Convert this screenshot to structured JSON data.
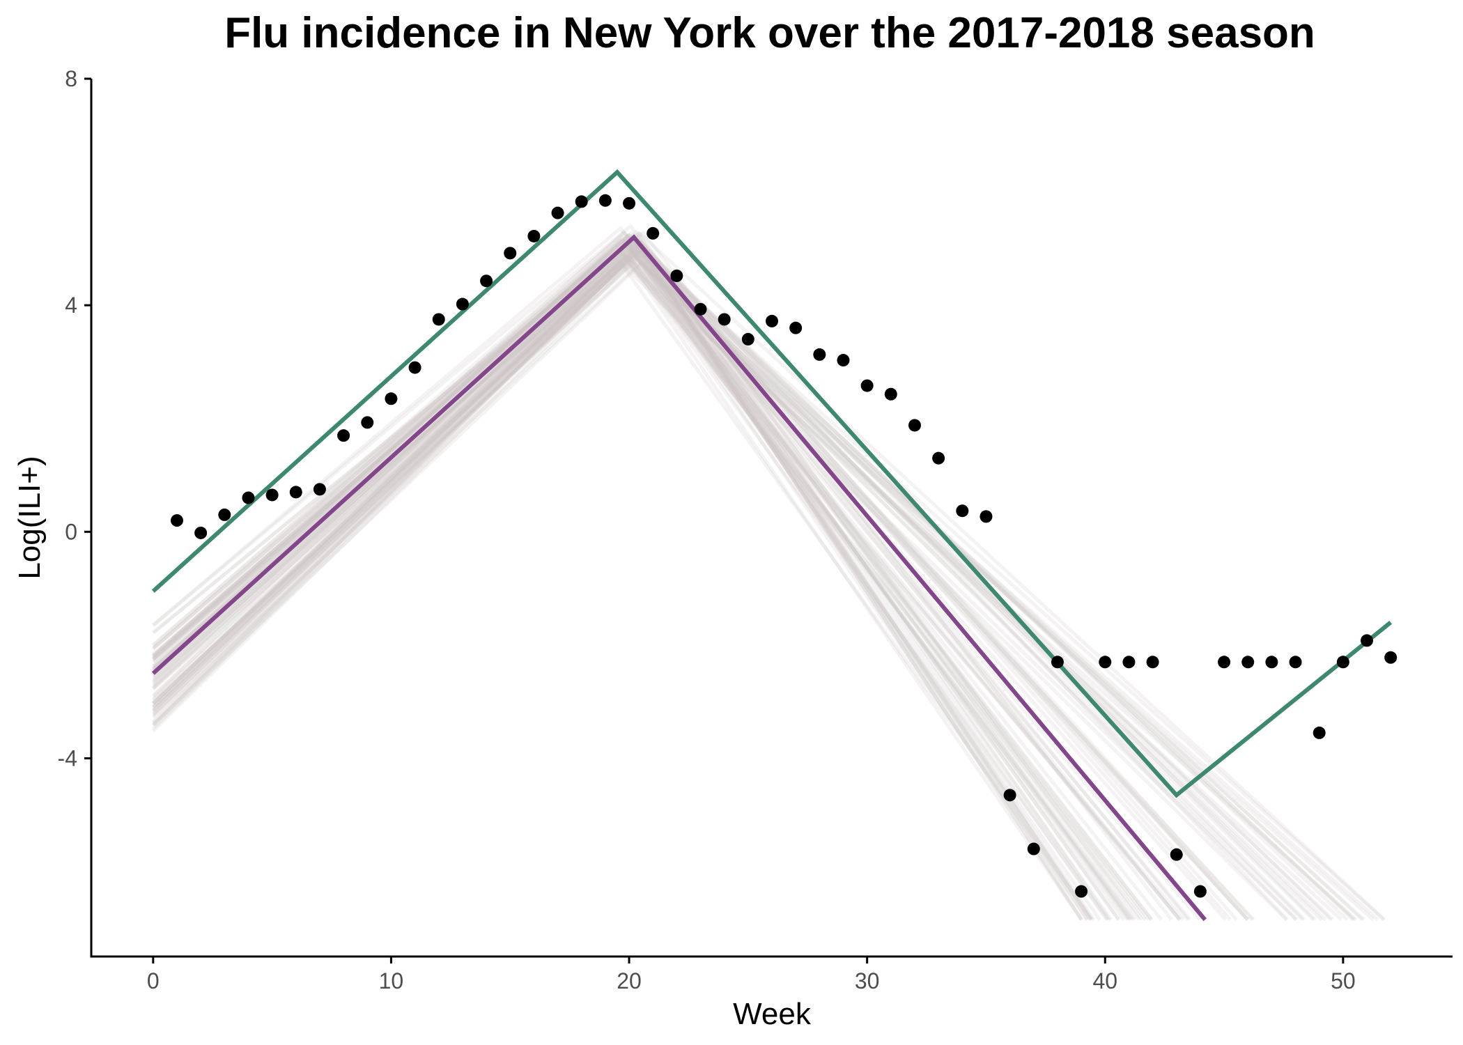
{
  "chart_data": {
    "type": "line",
    "title": "Flu incidence in New York over the 2017-2018 season",
    "xlabel": "Week",
    "ylabel": "Log(ILI+)",
    "xlim": [
      -2.6,
      54.6
    ],
    "ylim": [
      -7.5,
      8
    ],
    "x_ticks": [
      0,
      10,
      20,
      30,
      40,
      50
    ],
    "x_tick_labels": [
      "0",
      "10",
      "20",
      "30",
      "40",
      "50"
    ],
    "y_ticks": [
      -4,
      0,
      4,
      8
    ],
    "y_tick_labels": [
      "-4",
      "0",
      "4",
      "8"
    ],
    "grid": false,
    "legend": "none",
    "colors": {
      "observed": "#000000",
      "green_fit": "#3e8870",
      "purple_fit": "#83468a",
      "ensemble": "#cfc6c6"
    },
    "observed_points": {
      "x": [
        1,
        2,
        3,
        4,
        5,
        6,
        7,
        8,
        9,
        10,
        11,
        12,
        13,
        14,
        15,
        16,
        17,
        18,
        19,
        20,
        21,
        22,
        23,
        24,
        25,
        26,
        27,
        28,
        29,
        30,
        31,
        32,
        33,
        34,
        35,
        36,
        37,
        38,
        39,
        40,
        41,
        42,
        43,
        44,
        45,
        46,
        47,
        48,
        49,
        50,
        51,
        52
      ],
      "y": [
        0.2,
        -0.02,
        0.3,
        0.6,
        0.65,
        0.7,
        0.75,
        1.7,
        1.93,
        2.35,
        2.9,
        3.75,
        4.02,
        4.43,
        4.92,
        5.22,
        5.63,
        5.83,
        5.85,
        5.8,
        5.27,
        4.52,
        3.93,
        3.75,
        3.4,
        3.72,
        3.6,
        3.13,
        3.03,
        2.58,
        2.43,
        1.88,
        1.3,
        0.37,
        0.27,
        -4.65,
        -5.6,
        -2.3,
        -6.35,
        -2.3,
        -2.3,
        -2.3,
        -5.7,
        -6.35,
        -2.3,
        -2.3,
        -2.3,
        -2.3,
        -3.55,
        -2.3,
        -1.92,
        -2.22
      ]
    },
    "series": [
      {
        "x": [
          0,
          19.5,
          43,
          52
        ],
        "y": [
          -1.05,
          6.35,
          -4.65,
          -1.6
        ]
      },
      {
        "x": [
          0,
          20.2,
          44.2
        ],
        "y": [
          -2.5,
          5.2,
          -6.85
        ]
      }
    ],
    "ensemble": {
      "count": 70,
      "start_x": 0,
      "start_y_range": [
        -3.6,
        -1.6
      ],
      "peak_x_range": [
        19.6,
        20.6
      ],
      "peak_y_range": [
        4.7,
        5.4
      ],
      "end_y": -6.85,
      "end_x_range": [
        39.0,
        51.8
      ]
    }
  }
}
